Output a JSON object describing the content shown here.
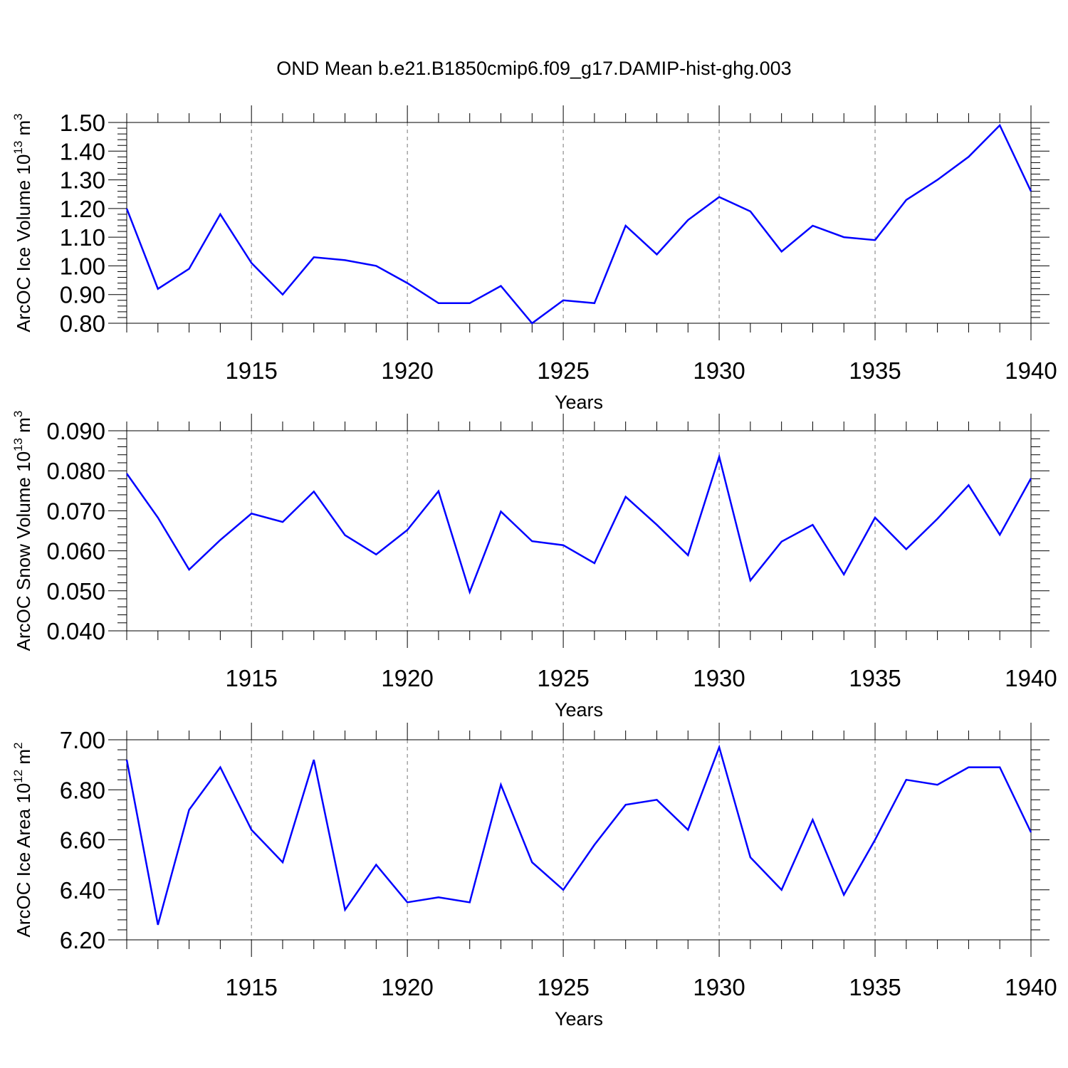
{
  "title": "OND Mean b.e21.B1850cmip6.f09_g17.DAMIP-hist-ghg.003",
  "chart_data": [
    {
      "type": "line",
      "xlabel": "Years",
      "ylabel": {
        "prefix": "ArcOC Ice Volume 10",
        "exp": "13",
        "unit": " m",
        "unit_exp": "3"
      },
      "xlim": [
        1911,
        1940
      ],
      "ylim": [
        0.8,
        1.5
      ],
      "xticks": [
        "1915",
        "1920",
        "1925",
        "1930",
        "1935",
        "1940"
      ],
      "yticks": [
        "0.80",
        "0.90",
        "1.00",
        "1.10",
        "1.20",
        "1.30",
        "1.40",
        "1.50"
      ],
      "grid": "vertical dashed at major x ticks",
      "series": [
        {
          "name": "Ice Volume",
          "color": "#0000ff",
          "x": [
            1911,
            1912,
            1913,
            1914,
            1915,
            1916,
            1917,
            1918,
            1919,
            1920,
            1921,
            1922,
            1923,
            1924,
            1925,
            1926,
            1927,
            1928,
            1929,
            1930,
            1931,
            1932,
            1933,
            1934,
            1935,
            1936,
            1937,
            1938,
            1939,
            1940
          ],
          "values": [
            1.2,
            0.92,
            0.99,
            1.18,
            1.01,
            0.9,
            1.03,
            1.02,
            1.0,
            0.94,
            0.87,
            0.87,
            0.93,
            0.8,
            0.88,
            0.87,
            1.14,
            1.04,
            1.16,
            1.24,
            1.19,
            1.05,
            1.14,
            1.1,
            1.09,
            1.23,
            1.3,
            1.38,
            1.49,
            1.26
          ]
        }
      ]
    },
    {
      "type": "line",
      "xlabel": "Years",
      "ylabel": {
        "prefix": "ArcOC Snow Volume 10",
        "exp": "13",
        "unit": " m",
        "unit_exp": "3"
      },
      "xlim": [
        1911,
        1940
      ],
      "ylim": [
        0.04,
        0.09
      ],
      "xticks": [
        "1915",
        "1920",
        "1925",
        "1930",
        "1935",
        "1940"
      ],
      "yticks": [
        "0.040",
        "0.050",
        "0.060",
        "0.070",
        "0.080",
        "0.090"
      ],
      "grid": "vertical dashed at major x ticks",
      "series": [
        {
          "name": "Snow Volume",
          "color": "#0000ff",
          "x": [
            1911,
            1912,
            1913,
            1914,
            1915,
            1916,
            1917,
            1918,
            1919,
            1920,
            1921,
            1922,
            1923,
            1924,
            1925,
            1926,
            1927,
            1928,
            1929,
            1930,
            1931,
            1932,
            1933,
            1934,
            1935,
            1936,
            1937,
            1938,
            1939,
            1940
          ],
          "values": [
            0.0793,
            0.0683,
            0.0553,
            0.0627,
            0.0693,
            0.0672,
            0.0748,
            0.0639,
            0.0591,
            0.0652,
            0.0749,
            0.0497,
            0.0698,
            0.0624,
            0.0614,
            0.0569,
            0.0735,
            0.0665,
            0.0589,
            0.0835,
            0.0526,
            0.0623,
            0.0665,
            0.0541,
            0.0683,
            0.0604,
            0.068,
            0.0764,
            0.064,
            0.0781
          ]
        }
      ]
    },
    {
      "type": "line",
      "xlabel": "Years",
      "ylabel": {
        "prefix": "ArcOC Ice Area 10",
        "exp": "12",
        "unit": " m",
        "unit_exp": "2"
      },
      "xlim": [
        1911,
        1940
      ],
      "ylim": [
        6.2,
        7.0
      ],
      "xticks": [
        "1915",
        "1920",
        "1925",
        "1930",
        "1935",
        "1940"
      ],
      "yticks": [
        "6.20",
        "6.40",
        "6.60",
        "6.80",
        "7.00"
      ],
      "grid": "vertical dashed at major x ticks",
      "series": [
        {
          "name": "Ice Area",
          "color": "#0000ff",
          "x": [
            1911,
            1912,
            1913,
            1914,
            1915,
            1916,
            1917,
            1918,
            1919,
            1920,
            1921,
            1922,
            1923,
            1924,
            1925,
            1926,
            1927,
            1928,
            1929,
            1930,
            1931,
            1932,
            1933,
            1934,
            1935,
            1936,
            1937,
            1938,
            1939,
            1940
          ],
          "values": [
            6.92,
            6.26,
            6.72,
            6.89,
            6.64,
            6.51,
            6.92,
            6.32,
            6.5,
            6.35,
            6.37,
            6.35,
            6.82,
            6.51,
            6.4,
            6.58,
            6.74,
            6.76,
            6.64,
            6.97,
            6.53,
            6.4,
            6.68,
            6.38,
            6.6,
            6.84,
            6.82,
            6.89,
            6.89,
            6.63
          ]
        }
      ]
    }
  ]
}
